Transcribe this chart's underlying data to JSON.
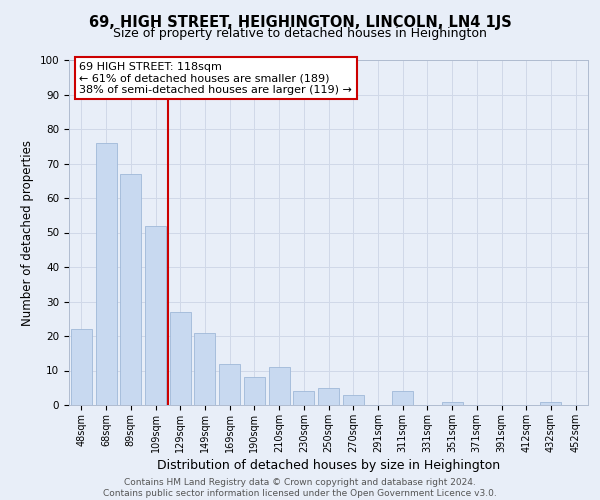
{
  "title": "69, HIGH STREET, HEIGHINGTON, LINCOLN, LN4 1JS",
  "subtitle": "Size of property relative to detached houses in Heighington",
  "xlabel": "Distribution of detached houses by size in Heighington",
  "ylabel": "Number of detached properties",
  "footer_line1": "Contains HM Land Registry data © Crown copyright and database right 2024.",
  "footer_line2": "Contains public sector information licensed under the Open Government Licence v3.0.",
  "bar_labels": [
    "48sqm",
    "68sqm",
    "89sqm",
    "109sqm",
    "129sqm",
    "149sqm",
    "169sqm",
    "190sqm",
    "210sqm",
    "230sqm",
    "250sqm",
    "270sqm",
    "291sqm",
    "311sqm",
    "331sqm",
    "351sqm",
    "371sqm",
    "391sqm",
    "412sqm",
    "432sqm",
    "452sqm"
  ],
  "bar_values": [
    22,
    76,
    67,
    52,
    27,
    21,
    12,
    8,
    11,
    4,
    5,
    3,
    0,
    4,
    0,
    1,
    0,
    0,
    0,
    1,
    0
  ],
  "bar_color": "#c8d9f0",
  "bar_edge_color": "#a0b8d8",
  "vline_x": 3.5,
  "vline_color": "#cc0000",
  "annotation_text": "69 HIGH STREET: 118sqm\n← 61% of detached houses are smaller (189)\n38% of semi-detached houses are larger (119) →",
  "annotation_box_color": "white",
  "annotation_box_edge": "#cc0000",
  "ylim": [
    0,
    100
  ],
  "yticks": [
    0,
    10,
    20,
    30,
    40,
    50,
    60,
    70,
    80,
    90,
    100
  ],
  "grid_color": "#d0d8e8",
  "background_color": "#e8eef8",
  "title_fontsize": 10.5,
  "subtitle_fontsize": 9,
  "xlabel_fontsize": 9,
  "ylabel_fontsize": 8.5,
  "footer_fontsize": 6.5,
  "annotation_fontsize": 8
}
